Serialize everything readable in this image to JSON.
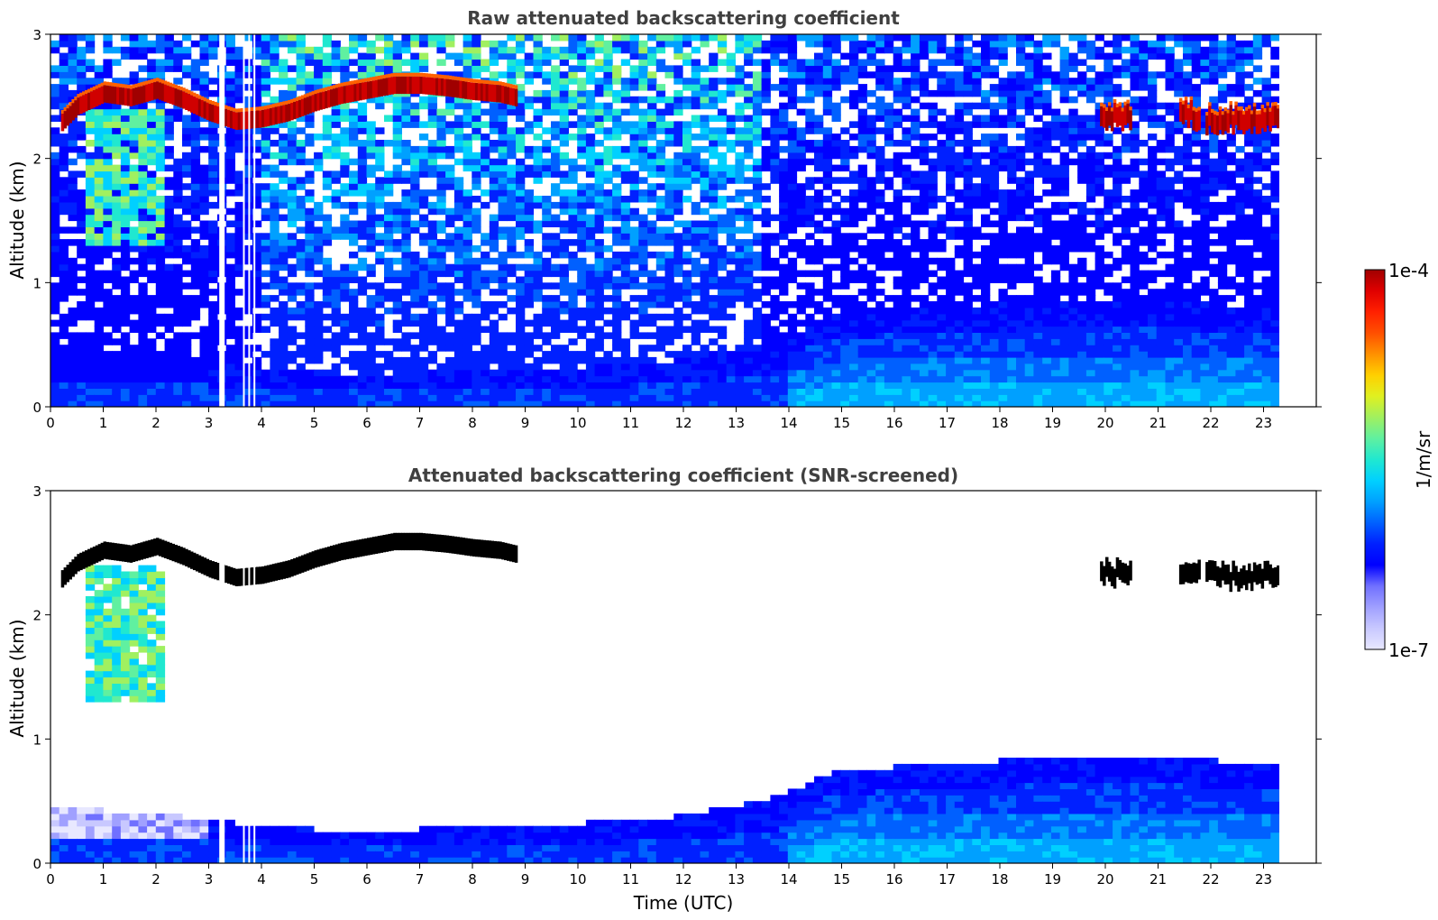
{
  "chart_data": [
    {
      "type": "heatmap",
      "title": "Raw attenuated backscattering coefficient",
      "xlabel": "",
      "ylabel": "Altitude (km)",
      "xlim": [
        0,
        24
      ],
      "ylim": [
        0,
        3
      ],
      "xticks": [
        "0",
        "1",
        "2",
        "3",
        "4",
        "5",
        "6",
        "7",
        "8",
        "9",
        "10",
        "11",
        "12",
        "13",
        "14",
        "15",
        "16",
        "17",
        "18",
        "19",
        "20",
        "21",
        "22",
        "23"
      ],
      "yticks": [
        "0",
        "1",
        "2",
        "3"
      ],
      "data_end_time": 23.3,
      "gaps_time": [
        3.2,
        3.65,
        3.75,
        3.85
      ],
      "cloud_layer_top": {
        "time": [
          0.2,
          0.5,
          1.0,
          1.5,
          2.0,
          2.5,
          3.0,
          3.5,
          4.0,
          4.5,
          5.0,
          5.5,
          6.0,
          6.5,
          7.0,
          7.5,
          8.0,
          8.5,
          8.8
        ],
        "altitude": [
          2.42,
          2.55,
          2.65,
          2.62,
          2.68,
          2.6,
          2.5,
          2.43,
          2.45,
          2.5,
          2.58,
          2.64,
          2.68,
          2.72,
          2.72,
          2.7,
          2.67,
          2.65,
          2.62
        ]
      },
      "late_clouds": [
        {
          "start": 19.9,
          "end": 20.5,
          "altitude": 2.38
        },
        {
          "start": 21.4,
          "end": 21.8,
          "altitude": 2.38
        },
        {
          "start": 21.9,
          "end": 23.3,
          "altitude": 2.35
        }
      ],
      "virga": {
        "start": 0.6,
        "end": 2.2,
        "bottom": 1.3,
        "top": 2.4
      },
      "boundary_layer_top": {
        "time": [
          0,
          2,
          4,
          6,
          8,
          10,
          12,
          13.5,
          15,
          17,
          19,
          21,
          23.3
        ],
        "altitude": [
          0.45,
          0.4,
          0.3,
          0.25,
          0.3,
          0.32,
          0.38,
          0.5,
          0.75,
          0.8,
          0.85,
          0.85,
          0.8
        ]
      },
      "colorscale": "jet",
      "background_level": "noisy"
    },
    {
      "type": "heatmap",
      "title": "Attenuated backscattering coefficient (SNR-screened)",
      "xlabel": "Time (UTC)",
      "ylabel": "Altitude (km)",
      "xlim": [
        0,
        24
      ],
      "ylim": [
        0,
        3
      ],
      "xticks": [
        "0",
        "1",
        "2",
        "3",
        "4",
        "5",
        "6",
        "7",
        "8",
        "9",
        "10",
        "11",
        "12",
        "13",
        "14",
        "15",
        "16",
        "17",
        "18",
        "19",
        "20",
        "21",
        "22",
        "23"
      ],
      "yticks": [
        "0",
        "1",
        "2",
        "3"
      ],
      "data_end_time": 23.3,
      "gaps_time": [
        3.2,
        3.65,
        3.75,
        3.85
      ],
      "screened_cloud_color": "#000000",
      "background_level": "screened"
    }
  ],
  "colorbar": {
    "label": "1/m/sr",
    "max_label": "1e-4",
    "min_label": "1e-7",
    "scale": "log",
    "colors": [
      "#e8e8ff",
      "#c8c8ff",
      "#a0a0ff",
      "#7070ff",
      "#0000ff",
      "#0020ff",
      "#0060ff",
      "#00a0ff",
      "#00d0ff",
      "#20e8d0",
      "#60f0a0",
      "#a0f060",
      "#e0f020",
      "#ffd000",
      "#ff9000",
      "#ff5000",
      "#ff2000",
      "#e00000",
      "#a00000"
    ]
  }
}
